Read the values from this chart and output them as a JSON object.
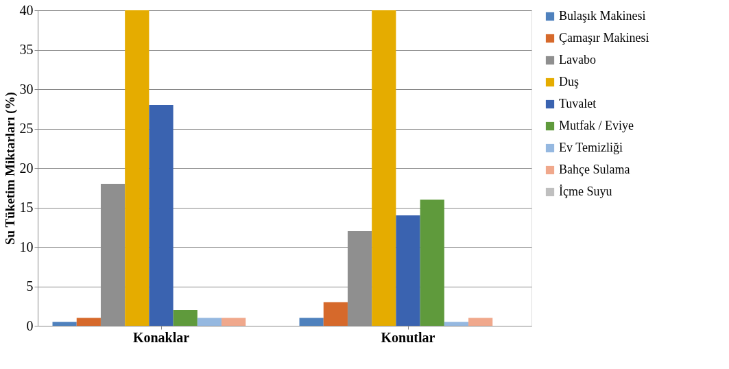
{
  "chart_data": {
    "type": "bar",
    "ylabel": "Su Tüketim Miktarları (%)",
    "categories": [
      "Konaklar",
      "Konutlar"
    ],
    "series": [
      {
        "name": "Bulaşık Makinesi",
        "color": "#4f81bd",
        "values": [
          0.5,
          1
        ]
      },
      {
        "name": "Çamaşır Makinesi",
        "color": "#d6692b",
        "values": [
          1,
          3
        ]
      },
      {
        "name": "Lavabo",
        "color": "#8f8f8f",
        "values": [
          18,
          12
        ]
      },
      {
        "name": "Duş",
        "color": "#e5ac00",
        "values": [
          40,
          40
        ]
      },
      {
        "name": "Tuvalet",
        "color": "#3a63b0",
        "values": [
          28,
          14
        ]
      },
      {
        "name": "Mutfak / Eviye",
        "color": "#5f9a3c",
        "values": [
          2,
          16
        ]
      },
      {
        "name": "Ev Temizliği",
        "color": "#95b8e0",
        "values": [
          1,
          0.5
        ]
      },
      {
        "name": "Bahçe Sulama",
        "color": "#f0a88c",
        "values": [
          1,
          1
        ]
      },
      {
        "name": "İçme Suyu",
        "color": "#bfbfbf",
        "values": [
          0,
          0
        ]
      }
    ],
    "ylim": [
      0,
      40
    ],
    "yticks": [
      0,
      5,
      10,
      15,
      20,
      25,
      30,
      35,
      40
    ],
    "grid": "y",
    "legend": "right"
  }
}
